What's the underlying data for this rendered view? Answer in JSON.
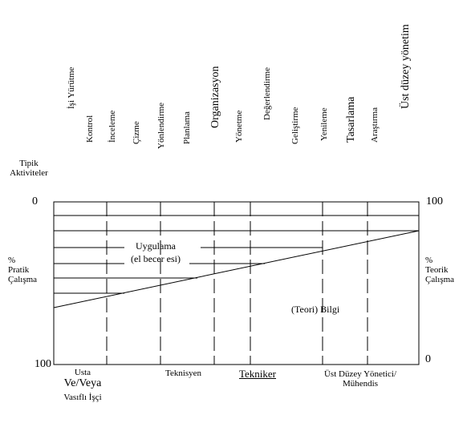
{
  "activities": [
    {
      "label": "İşi Yürütme",
      "size": 11
    },
    {
      "label": "Kontrol",
      "size": 11
    },
    {
      "label": "İnceleme",
      "size": 11
    },
    {
      "label": "Çizme",
      "size": 11
    },
    {
      "label": "Yönlendirme",
      "size": 11
    },
    {
      "label": "Planlama",
      "size": 11
    },
    {
      "label": "Organizasyon",
      "size": 14
    },
    {
      "label": "Yönetme",
      "size": 11
    },
    {
      "label": "Değerlendirme",
      "size": 11
    },
    {
      "label": "Geliştirme",
      "size": 11
    },
    {
      "label": "Yenileme",
      "size": 11
    },
    {
      "label": "Tasarlama",
      "size": 14
    },
    {
      "label": "Araştırma",
      "size": 11
    },
    {
      "label": "Üst düzey yönetim",
      "size": 14
    }
  ],
  "typical_activities_label": [
    "Tipik",
    "Aktiviteler"
  ],
  "left_axis": {
    "top": "0",
    "bottom": "100",
    "label": [
      "%",
      "Pratik",
      "Çalışma"
    ]
  },
  "right_axis": {
    "top": "100",
    "bottom": "0",
    "label": [
      "%",
      "Teorik",
      "Çalışma"
    ]
  },
  "regions": {
    "practical": [
      "Uygulama",
      "(el becer esi)"
    ],
    "theory": "(Teori) Bilgi"
  },
  "roles": {
    "usta": "Usta",
    "ve_veya": "Ve/Veya",
    "vasifli": "Vasıflı İşçi",
    "teknisyen": "Teknisyen",
    "tekniker": "Tekniker",
    "ust_duzey": "Üst Düzey Yönetici/",
    "muhendis": "Mühendis"
  },
  "chart_data": {
    "type": "area",
    "x_categories": [
      "Usta Ve/Veya Vasıflı İşçi",
      "Teknisyen",
      "Tekniker",
      "Üst Düzey Yönetici/ Mühendis"
    ],
    "left_axis_label": "% Pratik Çalışma",
    "right_axis_label": "% Teorik Çalışma",
    "left_ylim": [
      0,
      100
    ],
    "right_ylim": [
      100,
      0
    ],
    "dividing_line": {
      "left_value": 64,
      "right_value": 17
    }
  }
}
